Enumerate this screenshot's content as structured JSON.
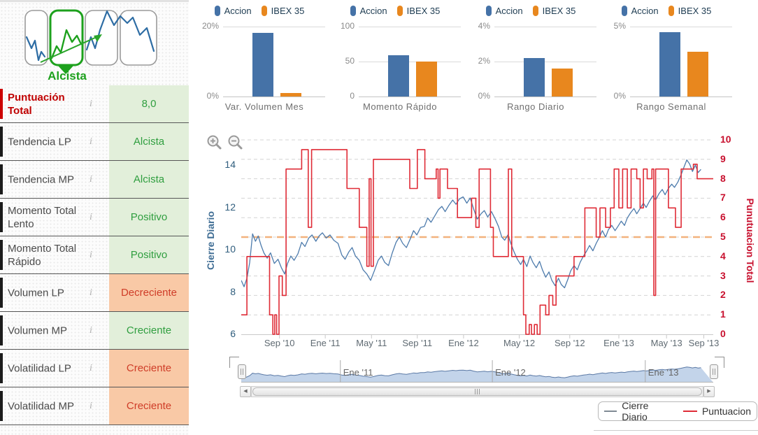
{
  "header": {
    "caption": "Alcista"
  },
  "summary_table": {
    "info_icon": "i",
    "rows": [
      {
        "label": "Puntuación Total",
        "value": "8,0",
        "tone": "positive",
        "emphasis": true
      },
      {
        "label": "Tendencia LP",
        "value": "Alcista",
        "tone": "positive"
      },
      {
        "label": "Tendencia MP",
        "value": "Alcista",
        "tone": "positive"
      },
      {
        "label": "Momento Total Lento",
        "value": "Positivo",
        "tone": "positive"
      },
      {
        "label": "Momento Total Rápido",
        "value": "Positivo",
        "tone": "positive"
      },
      {
        "label": "Volumen LP",
        "value": "Decreciente",
        "tone": "negative"
      },
      {
        "label": "Volumen MP",
        "value": "Creciente",
        "tone": "positive"
      },
      {
        "label": "Volatilidad LP",
        "value": "Creciente",
        "tone": "negative"
      },
      {
        "label": "Volatilidad MP",
        "value": "Creciente",
        "tone": "negative"
      }
    ]
  },
  "colors": {
    "accion": "#4572a7",
    "ibex": "#e8871e",
    "price": "#4d7bac",
    "score": "#df2b36",
    "threshold": "#f2b27d",
    "grid": "#d4d4d4",
    "positive_bg": "#e2efda",
    "positive_text": "#2f9e3f",
    "negative_bg": "#f9c9a6",
    "negative_text": "#cf3d28",
    "nav_fill": "#b9cce6",
    "nav_line": "#5b79a5",
    "legend_price_swatch": "#808a94"
  },
  "chart_data": [
    {
      "type": "bar",
      "title": "Var. Volumen Mes",
      "categories": [
        "Accion",
        "IBEX 35"
      ],
      "values": [
        18.2,
        1.0
      ],
      "ymax": 20,
      "yticks": [
        {
          "v": 20,
          "label": "20%"
        },
        {
          "v": 0,
          "label": "0%"
        }
      ]
    },
    {
      "type": "bar",
      "title": "Momento Rápido",
      "categories": [
        "Accion",
        "IBEX 35"
      ],
      "values": [
        59,
        50
      ],
      "ymax": 100,
      "yticks": [
        {
          "v": 100,
          "label": "100"
        },
        {
          "v": 50,
          "label": "50"
        },
        {
          "v": 0,
          "label": "0"
        }
      ]
    },
    {
      "type": "bar",
      "title": "Rango Diario",
      "categories": [
        "Accion",
        "IBEX 35"
      ],
      "values": [
        2.2,
        1.6
      ],
      "ymax": 4,
      "yticks": [
        {
          "v": 4,
          "label": "4%"
        },
        {
          "v": 2,
          "label": "2%"
        },
        {
          "v": 0,
          "label": "0%"
        }
      ]
    },
    {
      "type": "bar",
      "title": "Rango Semanal",
      "categories": [
        "Accion",
        "IBEX 35"
      ],
      "values": [
        4.6,
        3.2
      ],
      "ymax": 5,
      "yticks": [
        {
          "v": 5,
          "label": "5%"
        },
        {
          "v": 0,
          "label": "0%"
        }
      ]
    },
    {
      "type": "line",
      "left_axis": {
        "label": "Cierre Diario",
        "min": 6,
        "max": 15.36,
        "ticks": [
          6,
          8,
          10,
          12,
          14
        ]
      },
      "right_axis": {
        "label": "Punutuacion Total",
        "min": 0,
        "max": 10.18,
        "ticks": [
          0,
          1,
          2,
          3,
          4,
          5,
          6,
          7,
          8,
          9,
          10
        ]
      },
      "threshold_right": 5,
      "x_ticks": [
        {
          "x": 0.081,
          "label": "Sep '10"
        },
        {
          "x": 0.178,
          "label": "Ene '11"
        },
        {
          "x": 0.276,
          "label": "May '11"
        },
        {
          "x": 0.373,
          "label": "Sep '11"
        },
        {
          "x": 0.471,
          "label": "Ene '12"
        },
        {
          "x": 0.589,
          "label": "May '12"
        },
        {
          "x": 0.696,
          "label": "Sep '12"
        },
        {
          "x": 0.8,
          "label": "Ene '13"
        },
        {
          "x": 0.901,
          "label": "May '13"
        },
        {
          "x": 0.98,
          "label": "Sep '13"
        }
      ],
      "series": [
        {
          "name": "Cierre Diario",
          "axis": "left",
          "step": false,
          "points": [
            [
              0.0,
              8.55
            ],
            [
              0.006,
              8.25
            ],
            [
              0.012,
              8.65
            ],
            [
              0.018,
              9.4
            ],
            [
              0.024,
              10.75
            ],
            [
              0.03,
              10.4
            ],
            [
              0.036,
              10.65
            ],
            [
              0.042,
              10.2
            ],
            [
              0.048,
              9.85
            ],
            [
              0.055,
              9.6
            ],
            [
              0.062,
              9.85
            ],
            [
              0.07,
              9.35
            ],
            [
              0.078,
              9.55
            ],
            [
              0.085,
              9.15
            ],
            [
              0.092,
              8.85
            ],
            [
              0.098,
              9.35
            ],
            [
              0.105,
              9.7
            ],
            [
              0.112,
              9.5
            ],
            [
              0.12,
              9.8
            ],
            [
              0.128,
              10.35
            ],
            [
              0.135,
              10.15
            ],
            [
              0.143,
              10.55
            ],
            [
              0.15,
              10.7
            ],
            [
              0.158,
              10.4
            ],
            [
              0.165,
              10.65
            ],
            [
              0.172,
              10.8
            ],
            [
              0.18,
              10.55
            ],
            [
              0.188,
              10.7
            ],
            [
              0.196,
              10.45
            ],
            [
              0.205,
              10.3
            ],
            [
              0.213,
              9.75
            ],
            [
              0.22,
              9.55
            ],
            [
              0.228,
              9.9
            ],
            [
              0.235,
              10.1
            ],
            [
              0.242,
              9.7
            ],
            [
              0.25,
              9.5
            ],
            [
              0.258,
              9.05
            ],
            [
              0.266,
              8.85
            ],
            [
              0.274,
              8.55
            ],
            [
              0.282,
              9.0
            ],
            [
              0.29,
              9.5
            ],
            [
              0.297,
              9.7
            ],
            [
              0.304,
              9.4
            ],
            [
              0.312,
              9.25
            ],
            [
              0.32,
              9.85
            ],
            [
              0.328,
              10.35
            ],
            [
              0.335,
              10.6
            ],
            [
              0.342,
              10.3
            ],
            [
              0.35,
              10.1
            ],
            [
              0.358,
              10.5
            ],
            [
              0.365,
              10.9
            ],
            [
              0.372,
              10.7
            ],
            [
              0.38,
              11.05
            ],
            [
              0.388,
              11.1
            ],
            [
              0.395,
              11.5
            ],
            [
              0.402,
              11.3
            ],
            [
              0.41,
              11.6
            ],
            [
              0.418,
              11.9
            ],
            [
              0.425,
              12.05
            ],
            [
              0.432,
              11.8
            ],
            [
              0.44,
              12.1
            ],
            [
              0.448,
              12.35
            ],
            [
              0.455,
              12.15
            ],
            [
              0.462,
              12.4
            ],
            [
              0.47,
              12.5
            ],
            [
              0.478,
              12.2
            ],
            [
              0.485,
              12.45
            ],
            [
              0.492,
              11.95
            ],
            [
              0.5,
              11.45
            ],
            [
              0.508,
              11.7
            ],
            [
              0.515,
              11.85
            ],
            [
              0.522,
              11.55
            ],
            [
              0.53,
              11.8
            ],
            [
              0.538,
              11.45
            ],
            [
              0.545,
              11.1
            ],
            [
              0.552,
              10.6
            ],
            [
              0.558,
              10.45
            ],
            [
              0.565,
              10.7
            ],
            [
              0.572,
              10.25
            ],
            [
              0.578,
              9.9
            ],
            [
              0.585,
              9.55
            ],
            [
              0.592,
              9.3
            ],
            [
              0.598,
              9.55
            ],
            [
              0.605,
              9.2
            ],
            [
              0.612,
              9.7
            ],
            [
              0.618,
              9.4
            ],
            [
              0.625,
              9.15
            ],
            [
              0.632,
              9.45
            ],
            [
              0.638,
              9.05
            ],
            [
              0.645,
              8.7
            ],
            [
              0.652,
              8.95
            ],
            [
              0.658,
              8.55
            ],
            [
              0.665,
              8.3
            ],
            [
              0.672,
              8.65
            ],
            [
              0.678,
              8.35
            ],
            [
              0.685,
              8.2
            ],
            [
              0.692,
              8.6
            ],
            [
              0.698,
              9.0
            ],
            [
              0.705,
              9.25
            ],
            [
              0.712,
              9.05
            ],
            [
              0.718,
              9.4
            ],
            [
              0.725,
              9.7
            ],
            [
              0.732,
              9.95
            ],
            [
              0.738,
              10.2
            ],
            [
              0.745,
              9.95
            ],
            [
              0.752,
              10.3
            ],
            [
              0.758,
              10.55
            ],
            [
              0.765,
              10.9
            ],
            [
              0.772,
              10.6
            ],
            [
              0.778,
              10.95
            ],
            [
              0.785,
              11.15
            ],
            [
              0.792,
              10.9
            ],
            [
              0.798,
              11.1
            ],
            [
              0.805,
              11.35
            ],
            [
              0.812,
              11.15
            ],
            [
              0.818,
              11.5
            ],
            [
              0.825,
              11.75
            ],
            [
              0.832,
              11.95
            ],
            [
              0.838,
              11.7
            ],
            [
              0.845,
              11.95
            ],
            [
              0.852,
              12.2
            ],
            [
              0.858,
              12.0
            ],
            [
              0.865,
              12.3
            ],
            [
              0.872,
              12.55
            ],
            [
              0.878,
              12.35
            ],
            [
              0.885,
              12.65
            ],
            [
              0.892,
              12.85
            ],
            [
              0.898,
              12.6
            ],
            [
              0.905,
              12.9
            ],
            [
              0.912,
              13.1
            ],
            [
              0.918,
              12.95
            ],
            [
              0.925,
              13.2
            ],
            [
              0.932,
              13.55
            ],
            [
              0.938,
              13.9
            ],
            [
              0.944,
              14.25
            ],
            [
              0.95,
              14.05
            ],
            [
              0.956,
              13.7
            ],
            [
              0.962,
              14.0
            ],
            [
              0.968,
              13.65
            ],
            [
              0.974,
              13.8
            ]
          ]
        },
        {
          "name": "Puntuacion",
          "axis": "right",
          "step": true,
          "points": [
            [
              0.0,
              1
            ],
            [
              0.012,
              4
            ],
            [
              0.06,
              1
            ],
            [
              0.067,
              0
            ],
            [
              0.071,
              1
            ],
            [
              0.075,
              0
            ],
            [
              0.08,
              3
            ],
            [
              0.087,
              2
            ],
            [
              0.095,
              8.5
            ],
            [
              0.128,
              9.5
            ],
            [
              0.142,
              5.5
            ],
            [
              0.149,
              9.5
            ],
            [
              0.224,
              7.5
            ],
            [
              0.25,
              5.5
            ],
            [
              0.266,
              3.5
            ],
            [
              0.271,
              8
            ],
            [
              0.275,
              3.5
            ],
            [
              0.28,
              9
            ],
            [
              0.357,
              7.5
            ],
            [
              0.373,
              9.5
            ],
            [
              0.389,
              8
            ],
            [
              0.413,
              8.5
            ],
            [
              0.417,
              7
            ],
            [
              0.421,
              8.5
            ],
            [
              0.437,
              7.5
            ],
            [
              0.458,
              6
            ],
            [
              0.488,
              7
            ],
            [
              0.497,
              5.5
            ],
            [
              0.504,
              8.5
            ],
            [
              0.528,
              5.5
            ],
            [
              0.534,
              4
            ],
            [
              0.566,
              8.5
            ],
            [
              0.573,
              4
            ],
            [
              0.598,
              1
            ],
            [
              0.603,
              0
            ],
            [
              0.61,
              0.5
            ],
            [
              0.615,
              0
            ],
            [
              0.621,
              0.5
            ],
            [
              0.627,
              0
            ],
            [
              0.633,
              1.5
            ],
            [
              0.645,
              1
            ],
            [
              0.652,
              2
            ],
            [
              0.66,
              1.5
            ],
            [
              0.667,
              3
            ],
            [
              0.705,
              4
            ],
            [
              0.728,
              6.5
            ],
            [
              0.752,
              5
            ],
            [
              0.76,
              6.5
            ],
            [
              0.772,
              5.5
            ],
            [
              0.782,
              6.5
            ],
            [
              0.79,
              8.5
            ],
            [
              0.8,
              6.5
            ],
            [
              0.808,
              8.5
            ],
            [
              0.818,
              6.5
            ],
            [
              0.826,
              8.5
            ],
            [
              0.838,
              8
            ],
            [
              0.845,
              6.5
            ],
            [
              0.852,
              8.5
            ],
            [
              0.86,
              8
            ],
            [
              0.87,
              8.5
            ],
            [
              0.874,
              2
            ],
            [
              0.878,
              8.5
            ],
            [
              0.9,
              8.5
            ],
            [
              0.905,
              6.5
            ],
            [
              0.92,
              5.5
            ],
            [
              0.932,
              8.5
            ],
            [
              0.958,
              8.75
            ],
            [
              0.966,
              8
            ]
          ]
        }
      ],
      "navigator": {
        "labels": [
          {
            "x": 0.21,
            "label": "Ene '11"
          },
          {
            "x": 0.532,
            "label": "Ene '12"
          },
          {
            "x": 0.856,
            "label": "Ene '13"
          }
        ]
      }
    }
  ]
}
